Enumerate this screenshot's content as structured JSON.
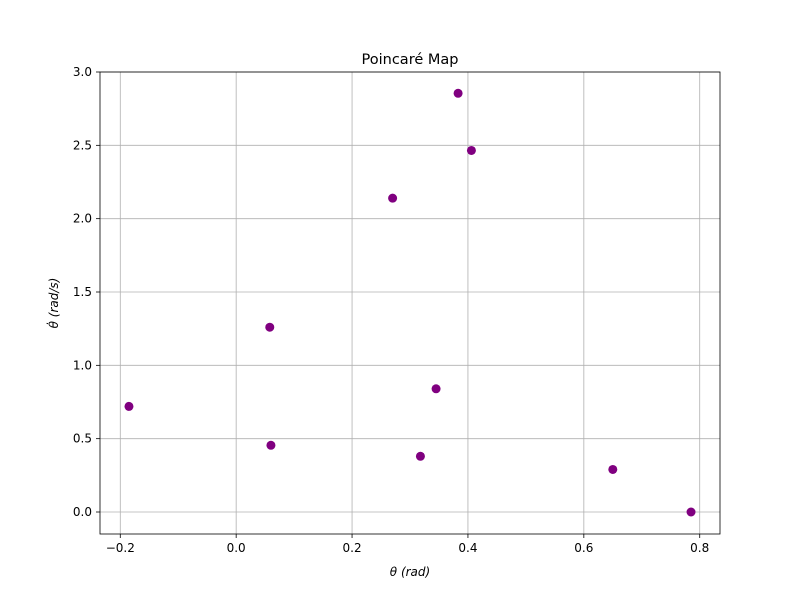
{
  "chart_data": {
    "type": "scatter",
    "title": "Poincaré Map",
    "xlabel": "θ (rad)",
    "ylabel": "θ̇ (rad/s)",
    "xlim": [
      -0.235,
      0.835
    ],
    "ylim": [
      -0.15,
      3.0
    ],
    "xticks": [
      -0.2,
      0.0,
      0.2,
      0.4,
      0.6,
      0.8
    ],
    "xtick_labels": [
      "−0.2",
      "0.0",
      "0.2",
      "0.4",
      "0.6",
      "0.8"
    ],
    "yticks": [
      0.0,
      0.5,
      1.0,
      1.5,
      2.0,
      2.5,
      3.0
    ],
    "ytick_labels": [
      "0.0",
      "0.5",
      "1.0",
      "1.5",
      "2.0",
      "2.5",
      "3.0"
    ],
    "grid": true,
    "color": "#800080",
    "points": [
      {
        "x": 0.785,
        "y": 0.0
      },
      {
        "x": -0.185,
        "y": 0.72
      },
      {
        "x": 0.058,
        "y": 1.26
      },
      {
        "x": 0.06,
        "y": 0.455
      },
      {
        "x": 0.27,
        "y": 2.14
      },
      {
        "x": 0.318,
        "y": 0.38
      },
      {
        "x": 0.345,
        "y": 0.84
      },
      {
        "x": 0.383,
        "y": 2.855
      },
      {
        "x": 0.406,
        "y": 2.465
      },
      {
        "x": 0.65,
        "y": 0.29
      }
    ]
  }
}
